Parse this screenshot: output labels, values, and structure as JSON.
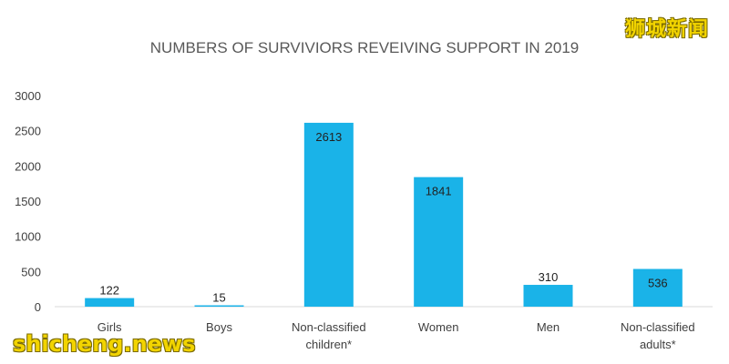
{
  "chart_data": {
    "type": "bar",
    "title": "NUMBERS OF SURVIVIORS REVEIVING SUPPORT IN 2019",
    "categories": [
      [
        "Girls"
      ],
      [
        "Boys"
      ],
      [
        "Non-classified",
        "children*"
      ],
      [
        "Women"
      ],
      [
        "Men"
      ],
      [
        "Non-classified",
        "adults*"
      ]
    ],
    "values": [
      122,
      15,
      2613,
      1841,
      310,
      536
    ],
    "ylim": [
      0,
      3000
    ],
    "yticks": [
      0,
      500,
      1000,
      1500,
      2000,
      2500,
      3000
    ],
    "grid": false,
    "bar_color": "#1ab3e8",
    "title_color": "#595959",
    "label_color": "#404040"
  },
  "watermarks": {
    "top_right": "狮城新闻",
    "bottom_left": "shicheng.news"
  }
}
